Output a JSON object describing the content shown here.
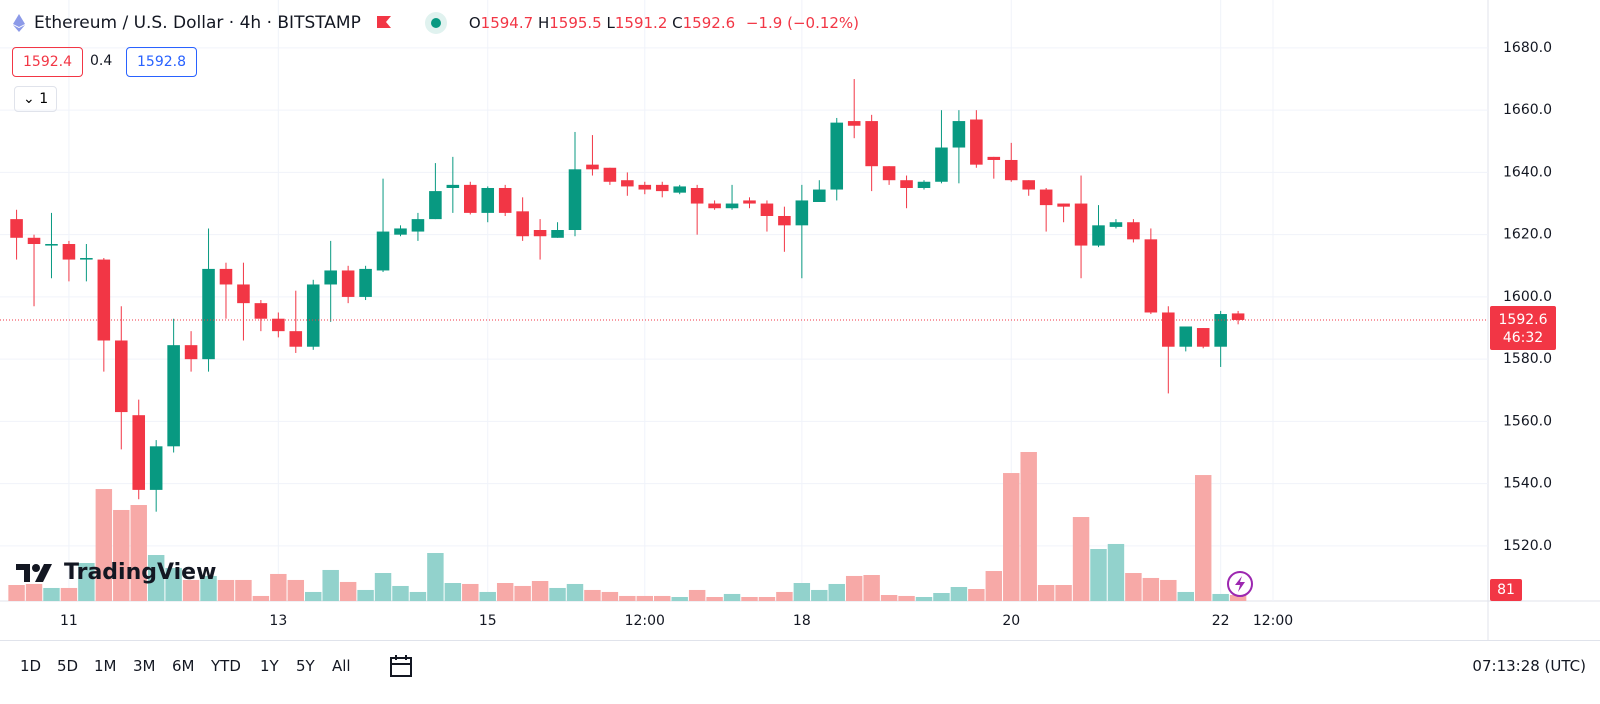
{
  "header": {
    "symbol": "Ethereum / U.S. Dollar · 4h · BITSTAMP",
    "ohlc_labels": [
      "O",
      "H",
      "L",
      "C"
    ],
    "change": "−1.9 (−0.12%)",
    "bid": 1592.4,
    "spread": 0.4,
    "ask": 1592.8,
    "indicator_count": 1,
    "countdown": "46:32"
  },
  "chart_data": {
    "type": "candlestick",
    "open": [
      1625,
      1619,
      1616.5,
      1617,
      1612,
      1612,
      1586,
      1562,
      1538,
      1552,
      1584.5,
      1580,
      1609,
      1604,
      1598,
      1593,
      1589,
      1584,
      1604,
      1608.5,
      1600,
      1608.5,
      1620,
      1621,
      1625,
      1635,
      1636,
      1627,
      1635,
      1627.5,
      1621.5,
      1619,
      1621.5,
      1642.5,
      1641.5,
      1637.5,
      1636,
      1636,
      1633.5,
      1635,
      1630,
      1628.5,
      1631,
      1630,
      1626,
      1623,
      1630.5,
      1634.5,
      1656.5,
      1656.5,
      1642,
      1637.5,
      1635,
      1637,
      1648,
      1657,
      1645,
      1644,
      1637.5,
      1634.5,
      1630,
      1630,
      1616.5,
      1622.5,
      1624,
      1618.5,
      1595,
      1584,
      1590,
      1584,
      1594.7
    ],
    "high": [
      1628,
      1620,
      1627,
      1618,
      1617,
      1612.5,
      1597,
      1567,
      1554,
      1593,
      1589,
      1622,
      1611,
      1611,
      1599,
      1595,
      1602,
      1605.5,
      1618,
      1610,
      1610,
      1638,
      1623,
      1627,
      1643,
      1645,
      1637,
      1635.5,
      1636,
      1632,
      1625,
      1624,
      1653,
      1652,
      1641.5,
      1640,
      1637,
      1637,
      1636,
      1636,
      1631,
      1636,
      1632,
      1631,
      1629,
      1636,
      1637.5,
      1657.5,
      1670,
      1658.5,
      1642,
      1639,
      1637.5,
      1660,
      1660,
      1660,
      1645,
      1649.5,
      1637.5,
      1635,
      1630,
      1639,
      1629.5,
      1625,
      1625,
      1622,
      1597,
      1590.5,
      1590,
      1595.5,
      1595.5
    ],
    "low": [
      1612,
      1597,
      1606,
      1605,
      1605,
      1576,
      1551,
      1535,
      1531,
      1550,
      1576,
      1576,
      1593,
      1586,
      1589,
      1587,
      1582,
      1583,
      1592,
      1598,
      1599,
      1608,
      1619.5,
      1618,
      1625,
      1627,
      1626.5,
      1624,
      1626,
      1618,
      1612,
      1619,
      1619.5,
      1639,
      1636,
      1632.5,
      1633,
      1632,
      1633,
      1620,
      1628,
      1628,
      1628.5,
      1621,
      1614.5,
      1606,
      1630.5,
      1631,
      1651,
      1634,
      1636,
      1628.5,
      1634.5,
      1636.5,
      1636.5,
      1641.5,
      1638,
      1637,
      1632.5,
      1621,
      1624,
      1606,
      1616,
      1622,
      1617.5,
      1594.5,
      1569,
      1582.5,
      1583.5,
      1577.5,
      1591.2
    ],
    "close": [
      1619,
      1617,
      1617,
      1612,
      1612.5,
      1586,
      1563,
      1538,
      1552,
      1584.5,
      1580,
      1609,
      1604,
      1598,
      1593,
      1589,
      1584,
      1604,
      1608.5,
      1600,
      1609,
      1621,
      1622,
      1625,
      1634,
      1636,
      1627,
      1635,
      1627,
      1619.5,
      1619.5,
      1621.5,
      1641,
      1641,
      1637,
      1635.5,
      1634.5,
      1634,
      1635.5,
      1630,
      1628.5,
      1630,
      1630,
      1626,
      1623,
      1631,
      1634.5,
      1656,
      1655,
      1642,
      1637.5,
      1635,
      1637,
      1648,
      1656.5,
      1642.5,
      1644,
      1637.5,
      1634.5,
      1629.5,
      1629,
      1616.5,
      1623,
      1624,
      1618.5,
      1595,
      1584,
      1590.5,
      1584,
      1594.5,
      1592.6
    ],
    "volume": [
      216,
      230,
      176,
      176,
      513,
      1512,
      1229,
      1296,
      621,
      446,
      284,
      338,
      284,
      284,
      68,
      365,
      284,
      122,
      419,
      257,
      149,
      378,
      203,
      122,
      648,
      243,
      230,
      122,
      243,
      203,
      270,
      176,
      230,
      149,
      122,
      68,
      68,
      68,
      54,
      149,
      54,
      95,
      54,
      54,
      122,
      243,
      149,
      230,
      338,
      351,
      81,
      68,
      54,
      108,
      189,
      162,
      405,
      1728,
      2012,
      216,
      216,
      1134,
      702,
      770,
      378,
      311,
      284,
      122,
      1701,
      95,
      81
    ],
    "up_color": "#089981",
    "down_color": "#f23645",
    "volume_up_color": "#92d2cc",
    "volume_down_color": "#f7a9a7",
    "ylim": [
      1502.3,
      1695.4
    ],
    "yticks": [
      {
        "value": 1520,
        "label": "1520.0"
      },
      {
        "value": 1540,
        "label": "1540.0"
      },
      {
        "value": 1560,
        "label": "1560.0"
      },
      {
        "value": 1580,
        "label": "1580.0"
      },
      {
        "value": 1600,
        "label": "1600.0"
      },
      {
        "value": 1620,
        "label": "1620.0"
      },
      {
        "value": 1640,
        "label": "1640.0"
      },
      {
        "value": 1660,
        "label": "1660.0"
      },
      {
        "value": 1680,
        "label": "1680.0"
      }
    ],
    "xlim": [
      -0.95,
      84.32
    ],
    "xticks": [
      {
        "value": 3,
        "label": "11"
      },
      {
        "value": 15,
        "label": "13"
      },
      {
        "value": 27,
        "label": "15"
      },
      {
        "value": 36,
        "label": "12:00"
      },
      {
        "value": 45,
        "label": "18"
      },
      {
        "value": 57,
        "label": "20"
      },
      {
        "value": 69,
        "label": "22"
      },
      {
        "value": 72,
        "label": "12:00"
      }
    ],
    "grid": true
  },
  "watermark": "TradingView",
  "toolbar": {
    "timeframes": [
      "1D",
      "5D",
      "1M",
      "3M",
      "6M",
      "YTD",
      "1Y",
      "5Y",
      "All"
    ],
    "clock": "07:13:28 (UTC)"
  }
}
